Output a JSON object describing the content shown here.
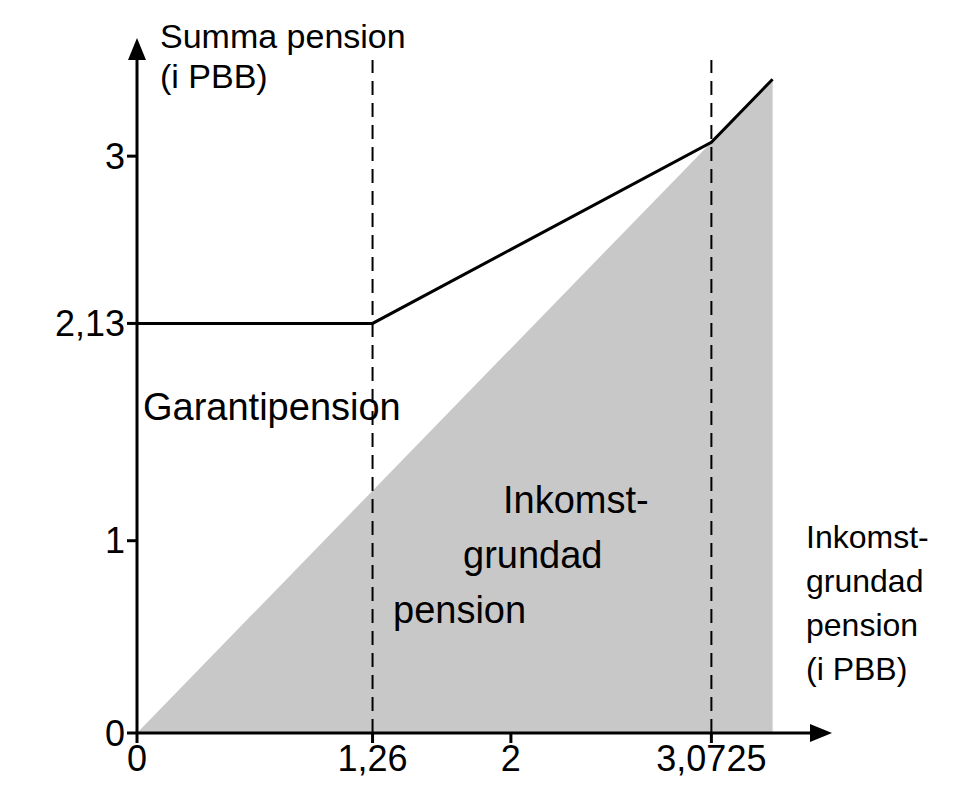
{
  "chart_data": {
    "type": "line",
    "y_label": [
      "Summa pension",
      "(i PBB)"
    ],
    "x_label": [
      "Inkomst-",
      "grundad",
      "pension",
      "(i PBB)"
    ],
    "annotations": [
      {
        "lines": [
          "Garantipension"
        ]
      },
      {
        "lines": [
          "Inkomst-",
          "grundad",
          "pension"
        ]
      }
    ],
    "x": [
      0,
      1.26,
      3.0725,
      3.4
    ],
    "series": [
      {
        "type": "area",
        "color": "#c8c8c8",
        "values": [
          0,
          1.26,
          3.0725,
          3.4
        ]
      },
      {
        "type": "line",
        "color": "#000000",
        "values": [
          2.13,
          2.13,
          3.0725,
          3.4
        ]
      }
    ],
    "guides": [
      1.26,
      3.0725
    ],
    "xlim": [
      0,
      3.6
    ],
    "ylim": [
      0,
      3.5
    ],
    "xticks": [
      0,
      {
        "value": 1.26,
        "label": "1,26"
      },
      2,
      {
        "value": 3.0725,
        "label": "3,0725"
      }
    ],
    "yticks": [
      0,
      1,
      {
        "value": 2.13,
        "label": "2,13"
      },
      3
    ],
    "grid": false
  }
}
